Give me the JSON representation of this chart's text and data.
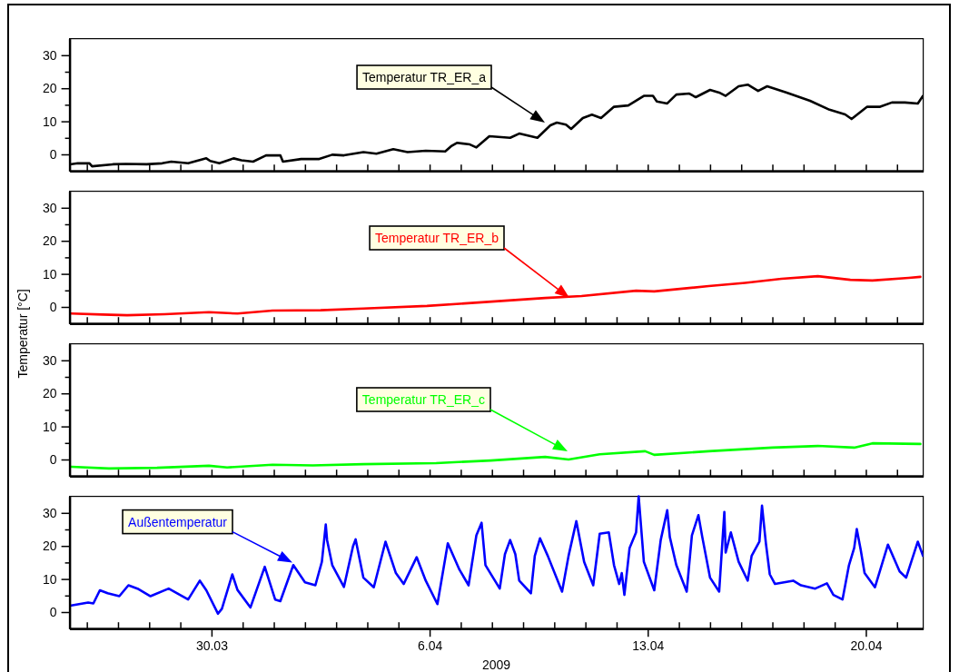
{
  "chart_data": [
    {
      "type": "line",
      "color": "#000000",
      "xlim": [
        "2009-03-25T10:40",
        "2009-04-21T20:10"
      ],
      "ylim": [
        -5,
        35
      ],
      "tick_labels": "y",
      "yticks": [
        0,
        {
          "value": 5,
          "label": null
        },
        10,
        {
          "value": 15,
          "label": null
        },
        20,
        {
          "value": 25,
          "label": null
        },
        30
      ],
      "xticks": [
        {
          "value": "2009-03-26",
          "label": null
        },
        {
          "value": "2009-03-27",
          "label": null
        },
        {
          "value": "2009-03-28",
          "label": null
        },
        {
          "value": "2009-03-29",
          "label": null
        },
        {
          "value": "2009-03-30",
          "label": null
        },
        {
          "value": "2009-03-31",
          "label": null
        },
        {
          "value": "2009-04-01",
          "label": null
        },
        {
          "value": "2009-04-02",
          "label": null
        },
        {
          "value": "2009-04-03",
          "label": null
        },
        {
          "value": "2009-04-04",
          "label": null
        },
        {
          "value": "2009-04-05",
          "label": null
        },
        {
          "value": "2009-04-06",
          "label": null
        },
        {
          "value": "2009-04-07",
          "label": null
        },
        {
          "value": "2009-04-08",
          "label": null
        },
        {
          "value": "2009-04-09",
          "label": null
        },
        {
          "value": "2009-04-10",
          "label": null
        },
        {
          "value": "2009-04-11",
          "label": null
        },
        {
          "value": "2009-04-12",
          "label": null
        },
        {
          "value": "2009-04-13",
          "label": null
        },
        {
          "value": "2009-04-14",
          "label": null
        },
        {
          "value": "2009-04-15",
          "label": null
        },
        {
          "value": "2009-04-16",
          "label": null
        },
        {
          "value": "2009-04-17",
          "label": null
        },
        {
          "value": "2009-04-18",
          "label": null
        },
        {
          "value": "2009-04-19",
          "label": null
        },
        {
          "value": "2009-04-20",
          "label": null
        },
        {
          "value": "2009-04-21",
          "label": null
        }
      ],
      "x": [
        "2009-03-25T11:00",
        "2009-03-25T17:00",
        "2009-03-26T02:00",
        "2009-03-26T04:00",
        "2009-03-26T20:00",
        "2009-03-27T06:00",
        "2009-03-27T22:00",
        "2009-03-28T10:00",
        "2009-03-28T17:00",
        "2009-03-29T06:00",
        "2009-03-29T20:00",
        "2009-03-29T23:00",
        "2009-03-30T06:00",
        "2009-03-30T17:00",
        "2009-03-30T23:00",
        "2009-03-31T08:00",
        "2009-03-31T18:00",
        "2009-04-01T05:00",
        "2009-04-01T07:00",
        "2009-04-01T21:00",
        "2009-04-02T11:00",
        "2009-04-02T21:00",
        "2009-04-03T06:00",
        "2009-04-03T21:00",
        "2009-04-04T07:00",
        "2009-04-04T20:00",
        "2009-04-05T07:00",
        "2009-04-05T21:00",
        "2009-04-06T12:00",
        "2009-04-06T17:00",
        "2009-04-06T21:00",
        "2009-04-07T07:00",
        "2009-04-07T12:00",
        "2009-04-07T22:00",
        "2009-04-08T14:00",
        "2009-04-08T21:00",
        "2009-04-09T11:00",
        "2009-04-09T21:00",
        "2009-04-10T02:00",
        "2009-04-10T09:00",
        "2009-04-10T13:00",
        "2009-04-10T22:00",
        "2009-04-11T05:00",
        "2009-04-11T12:00",
        "2009-04-11T22:00",
        "2009-04-12T09:00",
        "2009-04-12T21:00",
        "2009-04-13T04:00",
        "2009-04-13T07:00",
        "2009-04-13T15:00",
        "2009-04-13T22:00",
        "2009-04-14T08:00",
        "2009-04-14T13:00",
        "2009-04-15T00:00",
        "2009-04-15T07:00",
        "2009-04-15T12:00",
        "2009-04-15T22:00",
        "2009-04-16T05:00",
        "2009-04-16T13:00",
        "2009-04-16T20:00",
        "2009-04-17T11:00",
        "2009-04-18T05:00",
        "2009-04-18T20:00",
        "2009-04-19T08:00",
        "2009-04-19T13:00",
        "2009-04-20T01:00",
        "2009-04-20T11:00",
        "2009-04-20T20:00",
        "2009-04-21T06:00",
        "2009-04-21T16:00",
        "2009-04-21T20:00"
      ],
      "values": [
        -3,
        -2.7,
        -2.7,
        -3.6,
        -3,
        -2.9,
        -3,
        -2.7,
        -2.2,
        -2.7,
        -1.2,
        -2,
        -2.7,
        -1.2,
        -1.8,
        -2.2,
        -0.3,
        -0.3,
        -2.2,
        -1.4,
        -1.4,
        -0.1,
        -0.3,
        0.7,
        0.2,
        1.6,
        0.7,
        1.1,
        0.9,
        2.6,
        3.5,
        3,
        2.1,
        5.5,
        5,
        6.3,
        5,
        8.8,
        9.6,
        9,
        7.7,
        11,
        12,
        11,
        14.4,
        14.8,
        17.7,
        17.7,
        16,
        15.4,
        18.1,
        18.4,
        17.3,
        19.5,
        18.7,
        17.7,
        20.6,
        21.1,
        19.2,
        20.6,
        18.7,
        16.2,
        13.5,
        12.1,
        10.7,
        14.4,
        14.4,
        15.7,
        15.7,
        15.4,
        17.7
      ],
      "annotations": [
        "Temperatur TR_ER_a"
      ]
    },
    {
      "type": "line",
      "color": "#ff0000",
      "xlim": [
        "2009-03-25T10:40",
        "2009-04-21T20:10"
      ],
      "ylim": [
        -5,
        35
      ],
      "tick_labels": "y",
      "ylabel": "Temperatur [°C]",
      "yticks": [
        0,
        {
          "value": 5,
          "label": null
        },
        10,
        {
          "value": 15,
          "label": null
        },
        20,
        {
          "value": 25,
          "label": null
        },
        30
      ],
      "xticks": [
        {
          "value": "2009-03-26",
          "label": null
        },
        {
          "value": "2009-03-27",
          "label": null
        },
        {
          "value": "2009-03-28",
          "label": null
        },
        {
          "value": "2009-03-29",
          "label": null
        },
        {
          "value": "2009-03-30",
          "label": null
        },
        {
          "value": "2009-03-31",
          "label": null
        },
        {
          "value": "2009-04-01",
          "label": null
        },
        {
          "value": "2009-04-02",
          "label": null
        },
        {
          "value": "2009-04-03",
          "label": null
        },
        {
          "value": "2009-04-04",
          "label": null
        },
        {
          "value": "2009-04-05",
          "label": null
        },
        {
          "value": "2009-04-06",
          "label": null
        },
        {
          "value": "2009-04-07",
          "label": null
        },
        {
          "value": "2009-04-08",
          "label": null
        },
        {
          "value": "2009-04-09",
          "label": null
        },
        {
          "value": "2009-04-10",
          "label": null
        },
        {
          "value": "2009-04-11",
          "label": null
        },
        {
          "value": "2009-04-12",
          "label": null
        },
        {
          "value": "2009-04-13",
          "label": null
        },
        {
          "value": "2009-04-14",
          "label": null
        },
        {
          "value": "2009-04-15",
          "label": null
        },
        {
          "value": "2009-04-16",
          "label": null
        },
        {
          "value": "2009-04-17",
          "label": null
        },
        {
          "value": "2009-04-18",
          "label": null
        },
        {
          "value": "2009-04-19",
          "label": null
        },
        {
          "value": "2009-04-20",
          "label": null
        },
        {
          "value": "2009-04-21",
          "label": null
        }
      ],
      "x": [
        "2009-03-25T12:00",
        "2009-03-26T12:00",
        "2009-03-27T07:00",
        "2009-03-28T12:00",
        "2009-03-29T22:00",
        "2009-03-30T20:00",
        "2009-03-31T23:00",
        "2009-04-02T12:00",
        "2009-04-03T21:00",
        "2009-04-05T22:00",
        "2009-04-07T16:00",
        "2009-04-09T17:00",
        "2009-04-10T21:00",
        "2009-04-12T15:00",
        "2009-04-13T05:00",
        "2009-04-14T23:00",
        "2009-04-16T03:00",
        "2009-04-17T07:00",
        "2009-04-18T11:00",
        "2009-04-19T12:00",
        "2009-04-20T05:00",
        "2009-04-21T09:00",
        "2009-04-21T18:00"
      ],
      "values": [
        -2,
        -2.3,
        -2.5,
        -2.2,
        -1.6,
        -2,
        -1.1,
        -1,
        -0.5,
        0.3,
        1.4,
        2.7,
        3.3,
        4.9,
        4.7,
        6.3,
        7.3,
        8.5,
        9.3,
        8.2,
        8,
        8.8,
        9.1
      ],
      "annotations": [
        "Temperatur TR_ER_b"
      ]
    },
    {
      "type": "line",
      "color": "#00ff00",
      "xlim": [
        "2009-03-25T10:40",
        "2009-04-21T20:10"
      ],
      "ylim": [
        -5,
        35
      ],
      "tick_labels": "y",
      "yticks": [
        0,
        {
          "value": 5,
          "label": null
        },
        10,
        {
          "value": 15,
          "label": null
        },
        20,
        {
          "value": 25,
          "label": null
        },
        30
      ],
      "xticks": [
        {
          "value": "2009-03-26",
          "label": null
        },
        {
          "value": "2009-03-27",
          "label": null
        },
        {
          "value": "2009-03-28",
          "label": null
        },
        {
          "value": "2009-03-29",
          "label": null
        },
        {
          "value": "2009-03-30",
          "label": null
        },
        {
          "value": "2009-03-31",
          "label": null
        },
        {
          "value": "2009-04-01",
          "label": null
        },
        {
          "value": "2009-04-02",
          "label": null
        },
        {
          "value": "2009-04-03",
          "label": null
        },
        {
          "value": "2009-04-04",
          "label": null
        },
        {
          "value": "2009-04-05",
          "label": null
        },
        {
          "value": "2009-04-06",
          "label": null
        },
        {
          "value": "2009-04-07",
          "label": null
        },
        {
          "value": "2009-04-08",
          "label": null
        },
        {
          "value": "2009-04-09",
          "label": null
        },
        {
          "value": "2009-04-10",
          "label": null
        },
        {
          "value": "2009-04-11",
          "label": null
        },
        {
          "value": "2009-04-12",
          "label": null
        },
        {
          "value": "2009-04-13",
          "label": null
        },
        {
          "value": "2009-04-14",
          "label": null
        },
        {
          "value": "2009-04-15",
          "label": null
        },
        {
          "value": "2009-04-16",
          "label": null
        },
        {
          "value": "2009-04-17",
          "label": null
        },
        {
          "value": "2009-04-18",
          "label": null
        },
        {
          "value": "2009-04-19",
          "label": null
        },
        {
          "value": "2009-04-20",
          "label": null
        },
        {
          "value": "2009-04-21",
          "label": null
        }
      ],
      "x": [
        "2009-03-25T12:00",
        "2009-03-26T17:00",
        "2009-03-28T06:00",
        "2009-03-29T22:00",
        "2009-03-30T12:00",
        "2009-03-31T23:00",
        "2009-04-02T06:00",
        "2009-04-03T21:00",
        "2009-04-06T05:00",
        "2009-04-07T23:00",
        "2009-04-09T17:00",
        "2009-04-10T11:00",
        "2009-04-11T11:00",
        "2009-04-12T22:00",
        "2009-04-13T05:00",
        "2009-04-14T23:00",
        "2009-04-17T00:00",
        "2009-04-18T11:00",
        "2009-04-19T15:00",
        "2009-04-20T05:00",
        "2009-04-21T18:00"
      ],
      "values": [
        -2.2,
        -2.7,
        -2.5,
        -1.9,
        -2.4,
        -1.6,
        -1.8,
        -1.4,
        -1.1,
        -0.3,
        0.8,
        0,
        1.6,
        2.5,
        1.4,
        2.5,
        3.6,
        4.1,
        3.6,
        4.9,
        4.7
      ],
      "annotations": [
        "Temperatur TR_ER_c"
      ]
    },
    {
      "type": "line",
      "color": "#0000ff",
      "xlim": [
        "2009-03-25T10:40",
        "2009-04-21T20:10"
      ],
      "ylim": [
        -5,
        35
      ],
      "xlabel": "2009",
      "yticks": [
        0,
        {
          "value": 5,
          "label": null
        },
        10,
        {
          "value": 15,
          "label": null
        },
        20,
        {
          "value": 25,
          "label": null
        },
        30
      ],
      "xticks": [
        {
          "value": "2009-03-26",
          "label": null
        },
        {
          "value": "2009-03-27",
          "label": null
        },
        {
          "value": "2009-03-28",
          "label": null
        },
        {
          "value": "2009-03-29",
          "label": null
        },
        {
          "value": "2009-03-30",
          "label": "30.03"
        },
        {
          "value": "2009-03-31",
          "label": null
        },
        {
          "value": "2009-04-01",
          "label": null
        },
        {
          "value": "2009-04-02",
          "label": null
        },
        {
          "value": "2009-04-03",
          "label": null
        },
        {
          "value": "2009-04-04",
          "label": null
        },
        {
          "value": "2009-04-05",
          "label": null
        },
        {
          "value": "2009-04-06",
          "label": "6.04"
        },
        {
          "value": "2009-04-07",
          "label": null
        },
        {
          "value": "2009-04-08",
          "label": null
        },
        {
          "value": "2009-04-09",
          "label": null
        },
        {
          "value": "2009-04-10",
          "label": null
        },
        {
          "value": "2009-04-11",
          "label": null
        },
        {
          "value": "2009-04-12",
          "label": null
        },
        {
          "value": "2009-04-13",
          "label": "13.04"
        },
        {
          "value": "2009-04-14",
          "label": null
        },
        {
          "value": "2009-04-15",
          "label": null
        },
        {
          "value": "2009-04-16",
          "label": null
        },
        {
          "value": "2009-04-17",
          "label": null
        },
        {
          "value": "2009-04-18",
          "label": null
        },
        {
          "value": "2009-04-19",
          "label": null
        },
        {
          "value": "2009-04-20",
          "label": "20.04"
        },
        {
          "value": "2009-04-21",
          "label": null
        }
      ],
      "x": [
        "2009-03-25T11:00",
        "2009-03-26T01:00",
        "2009-03-26T05:00",
        "2009-03-26T10:00",
        "2009-03-26T16:00",
        "2009-03-27T01:00",
        "2009-03-27T08:00",
        "2009-03-27T15:00",
        "2009-03-28T01:00",
        "2009-03-28T15:00",
        "2009-03-29T06:00",
        "2009-03-29T15:00",
        "2009-03-29T20:00",
        "2009-03-30T05:00",
        "2009-03-30T08:00",
        "2009-03-30T16:00",
        "2009-03-30T20:00",
        "2009-03-31T06:00",
        "2009-03-31T17:00",
        "2009-04-01T01:00",
        "2009-04-01T05:00",
        "2009-04-01T15:00",
        "2009-04-02T00:00",
        "2009-04-02T08:00",
        "2009-04-02T13:00",
        "2009-04-02T16:00",
        "2009-04-02T17:00",
        "2009-04-02T21:00",
        "2009-04-03T06:00",
        "2009-04-03T13:00",
        "2009-04-03T15:00",
        "2009-04-03T21:00",
        "2009-04-04T05:00",
        "2009-04-04T14:00",
        "2009-04-04T22:00",
        "2009-04-05T04:00",
        "2009-04-05T14:00",
        "2009-04-05T21:00",
        "2009-04-06T06:00",
        "2009-04-06T14:00",
        "2009-04-06T23:00",
        "2009-04-07T06:00",
        "2009-04-07T12:00",
        "2009-04-07T16:00",
        "2009-04-07T19:00",
        "2009-04-08T06:00",
        "2009-04-08T10:00",
        "2009-04-08T14:00",
        "2009-04-08T18:00",
        "2009-04-08T21:00",
        "2009-04-09T06:00",
        "2009-04-09T09:00",
        "2009-04-09T13:00",
        "2009-04-09T19:00",
        "2009-04-10T06:00",
        "2009-04-10T11:00",
        "2009-04-10T17:00",
        "2009-04-10T23:00",
        "2009-04-11T06:00",
        "2009-04-11T11:00",
        "2009-04-11T18:00",
        "2009-04-11T22:00",
        "2009-04-12T02:00",
        "2009-04-12T04:00",
        "2009-04-12T06:00",
        "2009-04-12T10:00",
        "2009-04-12T15:00",
        "2009-04-12T17:00",
        "2009-04-12T21:00",
        "2009-04-13T05:00",
        "2009-04-13T10:00",
        "2009-04-13T15:00",
        "2009-04-13T17:00",
        "2009-04-13T22:00",
        "2009-04-14T06:00",
        "2009-04-14T10:00",
        "2009-04-14T15:00",
        "2009-04-14T18:00",
        "2009-04-15T00:00",
        "2009-04-15T07:00",
        "2009-04-15T11:00",
        "2009-04-15T12:00",
        "2009-04-15T16:00",
        "2009-04-15T22:00",
        "2009-04-16T05:00",
        "2009-04-16T08:00",
        "2009-04-16T14:00",
        "2009-04-16T16:00",
        "2009-04-16T19:00",
        "2009-04-16T22:00",
        "2009-04-17T02:00",
        "2009-04-17T16:00",
        "2009-04-17T22:00",
        "2009-04-18T09:00",
        "2009-04-18T18:00",
        "2009-04-18T23:00",
        "2009-04-19T06:00",
        "2009-04-19T11:00",
        "2009-04-19T15:00",
        "2009-04-19T17:00",
        "2009-04-19T20:00",
        "2009-04-19T23:00",
        "2009-04-20T07:00",
        "2009-04-20T17:00",
        "2009-04-21T02:00",
        "2009-04-21T07:00",
        "2009-04-21T16:00",
        "2009-04-21T20:00"
      ],
      "values": [
        1.9,
        2.9,
        2.6,
        6.6,
        5.7,
        4.8,
        8.1,
        7.1,
        4.8,
        7.1,
        3.8,
        9.5,
        6.6,
        -0.5,
        1,
        11.4,
        6.7,
        1.4,
        13.7,
        3.8,
        3.3,
        14.2,
        9,
        8.1,
        15.2,
        26.5,
        21.8,
        14.2,
        7.6,
        19.9,
        22,
        10.4,
        7.5,
        21.3,
        11.8,
        8.5,
        16.6,
        9.5,
        2.4,
        20.8,
        12.8,
        8.1,
        23.2,
        27,
        14.2,
        7.1,
        17.5,
        21.8,
        17.5,
        9.5,
        5.7,
        17,
        22.3,
        17,
        6.2,
        17,
        27.5,
        15.2,
        8.1,
        23.7,
        24.1,
        14.2,
        8.5,
        11.8,
        5.2,
        19.4,
        24.1,
        35,
        15.2,
        6.6,
        21.8,
        30.8,
        22.7,
        14.2,
        6.2,
        23.2,
        29.3,
        22.7,
        10.4,
        6.2,
        30.3,
        18,
        24.1,
        15.2,
        9.5,
        17,
        21.3,
        32.2,
        20.8,
        11.4,
        8.5,
        9.5,
        8.1,
        7.1,
        8.7,
        5.2,
        3.8,
        14.2,
        19.4,
        25.1,
        18.9,
        11.8,
        7.5,
        20.4,
        12.3,
        10.4,
        21.3,
        17
      ],
      "annotations": [
        "Außentemperatur"
      ]
    }
  ]
}
